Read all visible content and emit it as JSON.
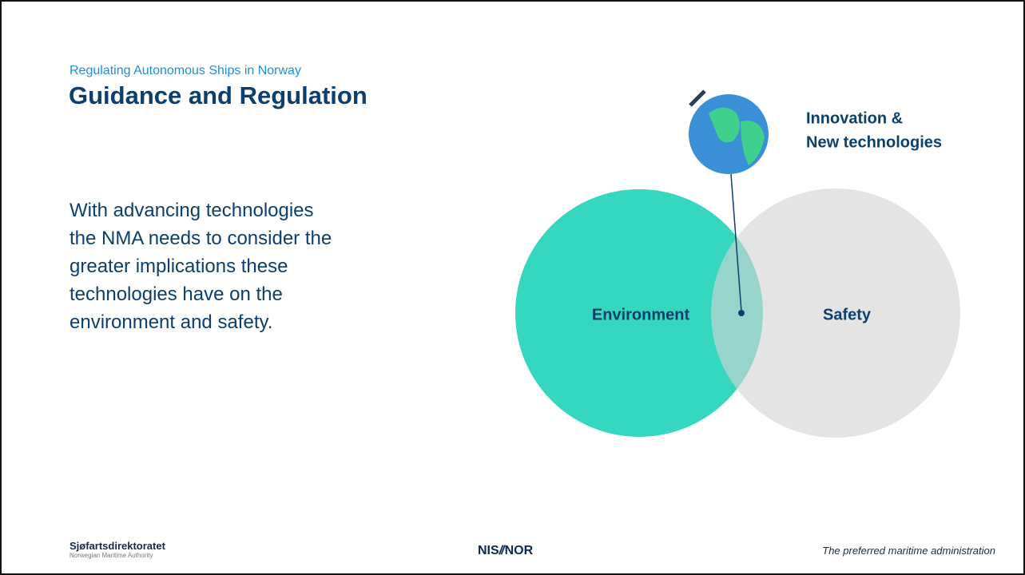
{
  "header": {
    "subtitle": "Regulating Autonomous Ships in Norway",
    "title": "Guidance and Regulation"
  },
  "body": {
    "lines": [
      "With advancing technologies",
      "the NMA needs to consider the",
      "greater implications these",
      "technologies have on the",
      "environment and safety."
    ]
  },
  "diagram": {
    "environment": "Environment",
    "safety": "Safety",
    "innovation": [
      "Innovation &",
      "New technologies"
    ]
  },
  "footer": {
    "org": "Sjøfartsdirektoratet",
    "org_sub": "Norwegian Maritime Authority",
    "logo_left": "NIS",
    "logo_right": "NOR",
    "tagline": "The preferred maritime administration"
  }
}
